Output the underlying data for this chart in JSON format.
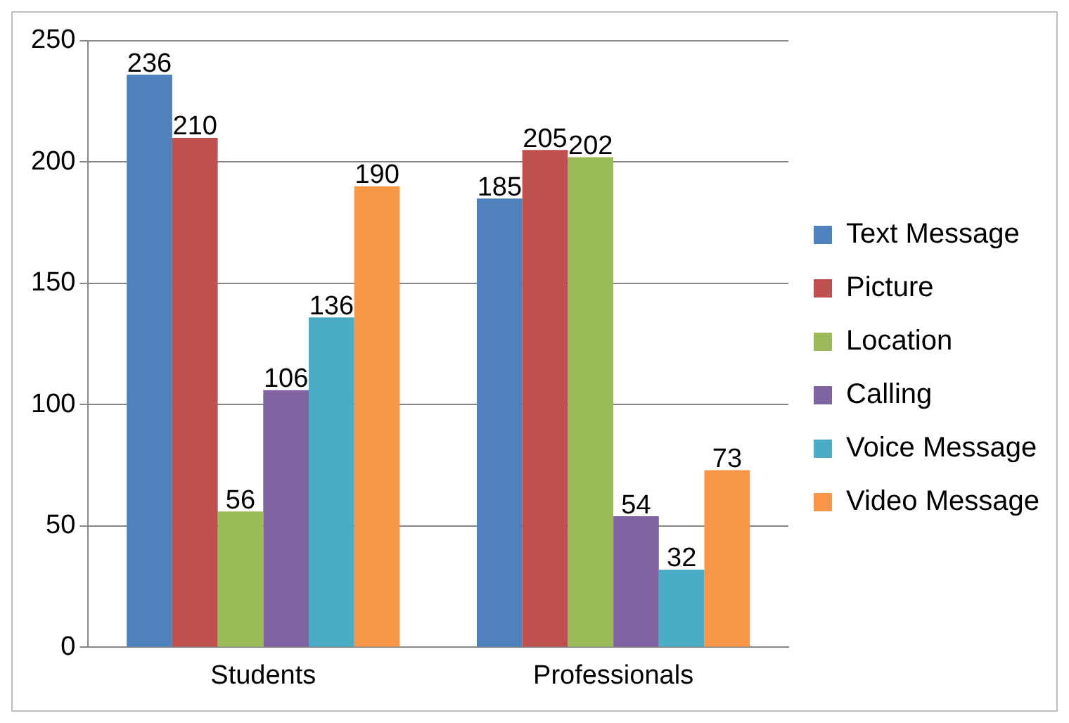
{
  "chart_data": {
    "type": "bar",
    "categories": [
      "Students",
      "Professionals"
    ],
    "series": [
      {
        "name": "Text Message",
        "color": "#4f81bd",
        "values": [
          236,
          185
        ]
      },
      {
        "name": "Picture",
        "color": "#c0504d",
        "values": [
          210,
          205
        ]
      },
      {
        "name": "Location",
        "color": "#9bbb59",
        "values": [
          56,
          202
        ]
      },
      {
        "name": "Calling",
        "color": "#8064a2",
        "values": [
          106,
          54
        ]
      },
      {
        "name": "Voice Message",
        "color": "#4bacc6",
        "values": [
          136,
          32
        ]
      },
      {
        "name": "Video Message",
        "color": "#f79646",
        "values": [
          190,
          73
        ]
      }
    ],
    "ylim": [
      0,
      250
    ],
    "yticks": [
      0,
      50,
      100,
      150,
      200,
      250
    ],
    "grid": "y",
    "legend": "right",
    "data_labels": true
  }
}
